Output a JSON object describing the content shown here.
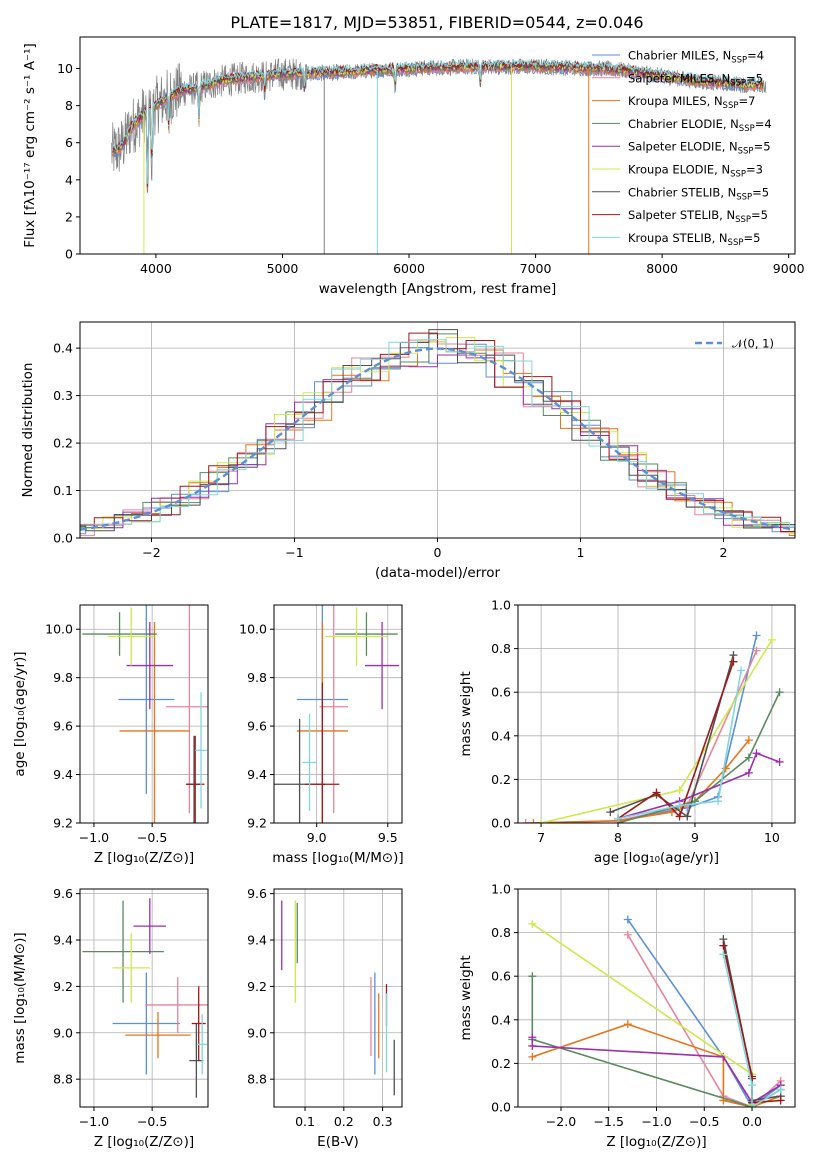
{
  "figure": {
    "title": "PLATE=1817, MJD=53851, FIBERID=0544, z=0.046"
  },
  "colors": {
    "chabrier_miles": "#5b8fd8",
    "salpeter_miles": "#e8849c",
    "kroupa_miles": "#e8741a",
    "chabrier_elodie": "#5a8a5e",
    "salpeter_elodie": "#9b2fae",
    "kroupa_elodie": "#cfe84a",
    "chabrier_stelib": "#505050",
    "salpeter_stelib": "#a01818",
    "kroupa_stelib": "#7fd8e0",
    "data": "#808080",
    "normal": "#5b8fd8"
  },
  "legend_spectrum": [
    {
      "key": "chabrier_miles",
      "pre": "Chabrier MILES, N",
      "sub": "SSP",
      "post": "=4"
    },
    {
      "key": "salpeter_miles",
      "pre": "Salpeter MILES, N",
      "sub": "SSP",
      "post": "=5"
    },
    {
      "key": "kroupa_miles",
      "pre": "Kroupa MILES, N",
      "sub": "SSP",
      "post": "=7"
    },
    {
      "key": "chabrier_elodie",
      "pre": "Chabrier ELODIE, N",
      "sub": "SSP",
      "post": "=4"
    },
    {
      "key": "salpeter_elodie",
      "pre": "Salpeter ELODIE, N",
      "sub": "SSP",
      "post": "=5"
    },
    {
      "key": "kroupa_elodie",
      "pre": "Kroupa ELODIE, N",
      "sub": "SSP",
      "post": "=3"
    },
    {
      "key": "chabrier_stelib",
      "pre": "Chabrier STELIB, N",
      "sub": "SSP",
      "post": "=5"
    },
    {
      "key": "salpeter_stelib",
      "pre": "Salpeter STELIB, N",
      "sub": "SSP",
      "post": "=5"
    },
    {
      "key": "kroupa_stelib",
      "pre": "Kroupa STELIB, N",
      "sub": "SSP",
      "post": "=5"
    }
  ],
  "legend_normal": "𝒩(0, 1)",
  "chart_data": [
    {
      "id": "spectrum",
      "type": "line",
      "xlabel": "wavelength [Angstrom, rest frame]",
      "ylabel": "Flux [fλ10⁻¹⁷ erg cm⁻² s⁻¹ A⁻¹]",
      "xlim": [
        3400,
        9050
      ],
      "ylim": [
        0,
        11.7
      ],
      "xticks": [
        4000,
        5000,
        6000,
        7000,
        8000,
        9000
      ],
      "yticks": [
        0,
        2,
        4,
        6,
        8,
        10
      ],
      "grid": false,
      "legend": "right",
      "continuum": {
        "x": [
          3650,
          3700,
          3750,
          3800,
          3900,
          4000,
          4100,
          4200,
          4300,
          4500,
          4700,
          5000,
          5500,
          6000,
          6500,
          7000,
          7500,
          7700,
          7900,
          8100,
          8300,
          8500,
          8700,
          8820
        ],
        "y": [
          5.5,
          5.6,
          6.0,
          6.8,
          7.5,
          8.0,
          8.5,
          8.8,
          8.9,
          9.3,
          9.5,
          9.7,
          9.8,
          10.0,
          10.1,
          10.1,
          10.0,
          9.9,
          9.7,
          9.5,
          9.3,
          9.2,
          9.1,
          9.1
        ]
      },
      "absorption_lines": [
        {
          "x": 3934,
          "y": 3.2
        },
        {
          "x": 3968,
          "y": 4.1
        },
        {
          "x": 4101,
          "y": 6.9
        },
        {
          "x": 4340,
          "y": 7.2
        },
        {
          "x": 4861,
          "y": 8.7
        },
        {
          "x": 5175,
          "y": 8.6
        },
        {
          "x": 5890,
          "y": 9.0
        },
        {
          "x": 6563,
          "y": 9.2
        }
      ],
      "dropouts": [
        {
          "x": 3905,
          "key": "kroupa_elodie"
        },
        {
          "x": 5330,
          "key": "data"
        },
        {
          "x": 5750,
          "key": "kroupa_stelib"
        },
        {
          "x": 6810,
          "key": "kroupa_elodie"
        },
        {
          "x": 7420,
          "key": "kroupa_miles"
        }
      ]
    },
    {
      "id": "residuals",
      "type": "histogram",
      "xlabel": "(data-model)/error",
      "ylabel": "Normed distribution",
      "xlim": [
        -2.5,
        2.5
      ],
      "ylim": [
        0,
        0.455
      ],
      "xticks": [
        -2,
        -1,
        0,
        1,
        2
      ],
      "yticks": [
        0.0,
        0.1,
        0.2,
        0.3,
        0.4
      ],
      "grid": true,
      "legend": "top-right",
      "bin_width": 0.2,
      "series_order": [
        "chabrier_miles",
        "salpeter_miles",
        "kroupa_miles",
        "chabrier_elodie",
        "salpeter_elodie",
        "kroupa_elodie",
        "chabrier_stelib",
        "salpeter_stelib",
        "kroupa_stelib"
      ]
    },
    {
      "id": "age_vs_Z",
      "type": "scatter",
      "xlabel": "Z [log₁₀(Z/Z⊙)]",
      "ylabel": "age  [log₁₀(age/yr)]",
      "xlim": [
        -1.12,
        -0.02
      ],
      "ylim": [
        9.2,
        10.1
      ],
      "xticks": [
        -1.0,
        -0.5
      ],
      "yticks": [
        9.2,
        9.4,
        9.6,
        9.8,
        10.0
      ],
      "grid": true,
      "points": [
        {
          "key": "chabrier_miles",
          "x": -0.55,
          "y": 9.71,
          "xerr": 0.24,
          "yerr": 0.39
        },
        {
          "key": "salpeter_miles",
          "x": -0.18,
          "y": 9.68,
          "xerr": 0.2,
          "yerr": 0.44
        },
        {
          "key": "kroupa_miles",
          "x": -0.48,
          "y": 9.58,
          "xerr": 0.3,
          "yerr": 0.45
        },
        {
          "key": "chabrier_elodie",
          "x": -0.78,
          "y": 9.98,
          "xerr": 0.32,
          "yerr": 0.09
        },
        {
          "key": "salpeter_elodie",
          "x": -0.52,
          "y": 9.85,
          "xerr": 0.2,
          "yerr": 0.18
        },
        {
          "key": "kroupa_elodie",
          "x": -0.68,
          "y": 9.97,
          "xerr": 0.2,
          "yerr": 0.12
        },
        {
          "key": "chabrier_stelib",
          "x": -0.14,
          "y": 9.36,
          "xerr": 0.06,
          "yerr": 0.2
        },
        {
          "key": "salpeter_stelib",
          "x": -0.13,
          "y": 9.36,
          "xerr": 0.08,
          "yerr": 0.2
        },
        {
          "key": "kroupa_stelib",
          "x": -0.08,
          "y": 9.5,
          "xerr": 0.05,
          "yerr": 0.24
        }
      ]
    },
    {
      "id": "age_vs_mass",
      "type": "scatter",
      "xlabel": "mass [log₁₀(M/M⊙)]",
      "ylabel": "",
      "xlim": [
        8.7,
        9.6
      ],
      "ylim": [
        9.2,
        10.1
      ],
      "xticks": [
        9.0,
        9.5
      ],
      "yticks": [
        9.2,
        9.4,
        9.6,
        9.8,
        10.0
      ],
      "grid": true,
      "points": [
        {
          "key": "chabrier_miles",
          "x": 9.04,
          "y": 9.71,
          "xerr": 0.18,
          "yerr": 0.39
        },
        {
          "key": "salpeter_miles",
          "x": 9.12,
          "y": 9.68,
          "xerr": 0.1,
          "yerr": 0.44
        },
        {
          "key": "kroupa_miles",
          "x": 9.04,
          "y": 9.58,
          "xerr": 0.18,
          "yerr": 0.45
        },
        {
          "key": "chabrier_elodie",
          "x": 9.35,
          "y": 9.98,
          "xerr": 0.22,
          "yerr": 0.09
        },
        {
          "key": "salpeter_elodie",
          "x": 9.46,
          "y": 9.85,
          "xerr": 0.12,
          "yerr": 0.18
        },
        {
          "key": "kroupa_elodie",
          "x": 9.28,
          "y": 9.97,
          "xerr": 0.22,
          "yerr": 0.12
        },
        {
          "key": "chabrier_stelib",
          "x": 8.88,
          "y": 9.36,
          "xerr": 0.18,
          "yerr": 0.27
        },
        {
          "key": "salpeter_stelib",
          "x": 9.04,
          "y": 9.36,
          "xerr": 0.12,
          "yerr": 0.42
        },
        {
          "key": "kroupa_stelib",
          "x": 8.95,
          "y": 9.45,
          "xerr": 0.05,
          "yerr": 0.2
        }
      ]
    },
    {
      "id": "weight_vs_age",
      "type": "line",
      "xlabel": "age  [log₁₀(age/yr)]",
      "ylabel": "mass weight",
      "xlim": [
        6.7,
        10.3
      ],
      "ylim": [
        0,
        1.0
      ],
      "xticks": [
        7,
        8,
        9,
        10
      ],
      "yticks": [
        0.0,
        0.2,
        0.4,
        0.6,
        0.8,
        1.0
      ],
      "grid": true,
      "series": [
        {
          "key": "chabrier_miles",
          "x": [
            8.0,
            8.9,
            9.3,
            9.8
          ],
          "y": [
            0.01,
            0.07,
            0.12,
            0.86
          ]
        },
        {
          "key": "salpeter_miles",
          "x": [
            6.8,
            8.0,
            8.9,
            9.8
          ],
          "y": [
            0.0,
            0.01,
            0.08,
            0.79
          ]
        },
        {
          "key": "kroupa_miles",
          "x": [
            6.9,
            8.0,
            8.7,
            9.0,
            9.4,
            9.7
          ],
          "y": [
            0.0,
            0.01,
            0.05,
            0.1,
            0.25,
            0.38
          ]
        },
        {
          "key": "chabrier_elodie",
          "x": [
            8.0,
            9.0,
            9.7,
            10.1
          ],
          "y": [
            0.0,
            0.1,
            0.3,
            0.6
          ]
        },
        {
          "key": "salpeter_elodie",
          "x": [
            8.0,
            8.8,
            9.7,
            9.8,
            10.1
          ],
          "y": [
            0.02,
            0.1,
            0.23,
            0.32,
            0.28
          ]
        },
        {
          "key": "kroupa_elodie",
          "x": [
            7.0,
            8.8,
            10.0
          ],
          "y": [
            0.0,
            0.15,
            0.84
          ]
        },
        {
          "key": "chabrier_stelib",
          "x": [
            7.9,
            8.5,
            8.9,
            9.5
          ],
          "y": [
            0.05,
            0.13,
            0.03,
            0.77
          ]
        },
        {
          "key": "salpeter_stelib",
          "x": [
            8.0,
            8.5,
            8.8,
            9.5
          ],
          "y": [
            0.02,
            0.14,
            0.03,
            0.74
          ]
        },
        {
          "key": "kroupa_stelib",
          "x": [
            8.0,
            8.8,
            9.3,
            9.6
          ],
          "y": [
            0.02,
            0.08,
            0.1,
            0.7
          ]
        }
      ]
    },
    {
      "id": "mass_vs_Z",
      "type": "scatter",
      "xlabel": "Z [log₁₀(Z/Z⊙)]",
      "ylabel": "mass [log₁₀(M/M⊙)]",
      "xlim": [
        -1.12,
        -0.02
      ],
      "ylim": [
        8.68,
        9.62
      ],
      "xticks": [
        -1.0,
        -0.5
      ],
      "yticks": [
        8.8,
        9.0,
        9.2,
        9.4,
        9.6
      ],
      "grid": true,
      "points": [
        {
          "key": "chabrier_miles",
          "x": -0.55,
          "y": 9.04,
          "xerr": 0.29,
          "yerr": 0.22
        },
        {
          "key": "salpeter_miles",
          "x": -0.28,
          "y": 9.12,
          "xerr": 0.28,
          "yerr": 0.12
        },
        {
          "key": "kroupa_miles",
          "x": -0.45,
          "y": 8.99,
          "xerr": 0.28,
          "yerr": 0.1
        },
        {
          "key": "chabrier_elodie",
          "x": -0.75,
          "y": 9.35,
          "xerr": 0.35,
          "yerr": 0.22
        },
        {
          "key": "salpeter_elodie",
          "x": -0.52,
          "y": 9.46,
          "xerr": 0.14,
          "yerr": 0.12
        },
        {
          "key": "kroupa_elodie",
          "x": -0.68,
          "y": 9.28,
          "xerr": 0.16,
          "yerr": 0.15
        },
        {
          "key": "chabrier_stelib",
          "x": -0.12,
          "y": 8.88,
          "xerr": 0.06,
          "yerr": 0.16
        },
        {
          "key": "salpeter_stelib",
          "x": -0.1,
          "y": 9.04,
          "xerr": 0.06,
          "yerr": 0.16
        },
        {
          "key": "kroupa_stelib",
          "x": -0.07,
          "y": 8.95,
          "xerr": 0.04,
          "yerr": 0.13
        }
      ]
    },
    {
      "id": "mass_vs_ebv",
      "type": "scatter",
      "xlabel": "E(B-V)",
      "ylabel": "",
      "xlim": [
        0.02,
        0.35
      ],
      "ylim": [
        8.68,
        9.62
      ],
      "xticks": [
        0.1,
        0.2,
        0.3
      ],
      "yticks": [
        8.8,
        9.0,
        9.2,
        9.4,
        9.6
      ],
      "grid": true,
      "points": [
        {
          "key": "chabrier_miles",
          "x": 0.28,
          "y": 9.04,
          "yerr": 0.22
        },
        {
          "key": "salpeter_miles",
          "x": 0.27,
          "y": 9.07,
          "yerr": 0.17
        },
        {
          "key": "kroupa_miles",
          "x": 0.29,
          "y": 9.03,
          "yerr": 0.14
        },
        {
          "key": "chabrier_elodie",
          "x": 0.08,
          "y": 9.43,
          "yerr": 0.13
        },
        {
          "key": "salpeter_elodie",
          "x": 0.04,
          "y": 9.42,
          "yerr": 0.15
        },
        {
          "key": "kroupa_elodie",
          "x": 0.075,
          "y": 9.35,
          "yerr": 0.22
        },
        {
          "key": "chabrier_stelib",
          "x": 0.33,
          "y": 8.85,
          "yerr": 0.12
        },
        {
          "key": "salpeter_stelib",
          "x": 0.31,
          "y": 9.12,
          "yerr": 0.09
        },
        {
          "key": "kroupa_stelib",
          "x": 0.31,
          "y": 9.0,
          "yerr": 0.17
        }
      ]
    },
    {
      "id": "weight_vs_Z",
      "type": "line",
      "xlabel": "Z [log₁₀(Z/Z⊙)]",
      "ylabel": "mass weight",
      "xlim": [
        -2.45,
        0.45
      ],
      "ylim": [
        0,
        1.0
      ],
      "xticks": [
        -2.0,
        -1.5,
        -1.0,
        -0.5,
        0.0
      ],
      "yticks": [
        0.0,
        0.2,
        0.4,
        0.6,
        0.8,
        1.0
      ],
      "grid": true,
      "series": [
        {
          "key": "chabrier_miles",
          "x": [
            -1.3,
            -0.3,
            0.0,
            0.3
          ],
          "y": [
            0.86,
            0.23,
            0.0,
            0.1
          ]
        },
        {
          "key": "salpeter_miles",
          "x": [
            -1.3,
            -0.3,
            0.0,
            0.3
          ],
          "y": [
            0.79,
            0.05,
            0.0,
            0.12
          ]
        },
        {
          "key": "kroupa_miles",
          "x": [
            -2.3,
            -1.3,
            -0.3,
            -0.3,
            0.0,
            0.3
          ],
          "y": [
            0.23,
            0.38,
            0.23,
            0.03,
            0.0,
            0.05
          ]
        },
        {
          "key": "chabrier_elodie",
          "x": [
            -2.3,
            -2.3,
            0.0,
            0.3
          ],
          "y": [
            0.6,
            0.31,
            0.0,
            0.08
          ]
        },
        {
          "key": "salpeter_elodie",
          "x": [
            -2.3,
            -2.3,
            -0.3,
            0.0,
            0.3
          ],
          "y": [
            0.32,
            0.28,
            0.23,
            0.02,
            0.1
          ]
        },
        {
          "key": "kroupa_elodie",
          "x": [
            -2.3,
            0.0,
            0.0
          ],
          "y": [
            0.84,
            0.15,
            0.01
          ]
        },
        {
          "key": "chabrier_stelib",
          "x": [
            -0.3,
            0.0,
            0.0,
            0.3
          ],
          "y": [
            0.77,
            0.13,
            0.03,
            0.05
          ]
        },
        {
          "key": "salpeter_stelib",
          "x": [
            -0.3,
            0.0,
            0.0,
            0.3
          ],
          "y": [
            0.74,
            0.14,
            0.02,
            0.03
          ]
        },
        {
          "key": "kroupa_stelib",
          "x": [
            -0.3,
            0.0,
            0.0,
            0.3
          ],
          "y": [
            0.7,
            0.1,
            0.0,
            0.08
          ]
        }
      ]
    }
  ]
}
